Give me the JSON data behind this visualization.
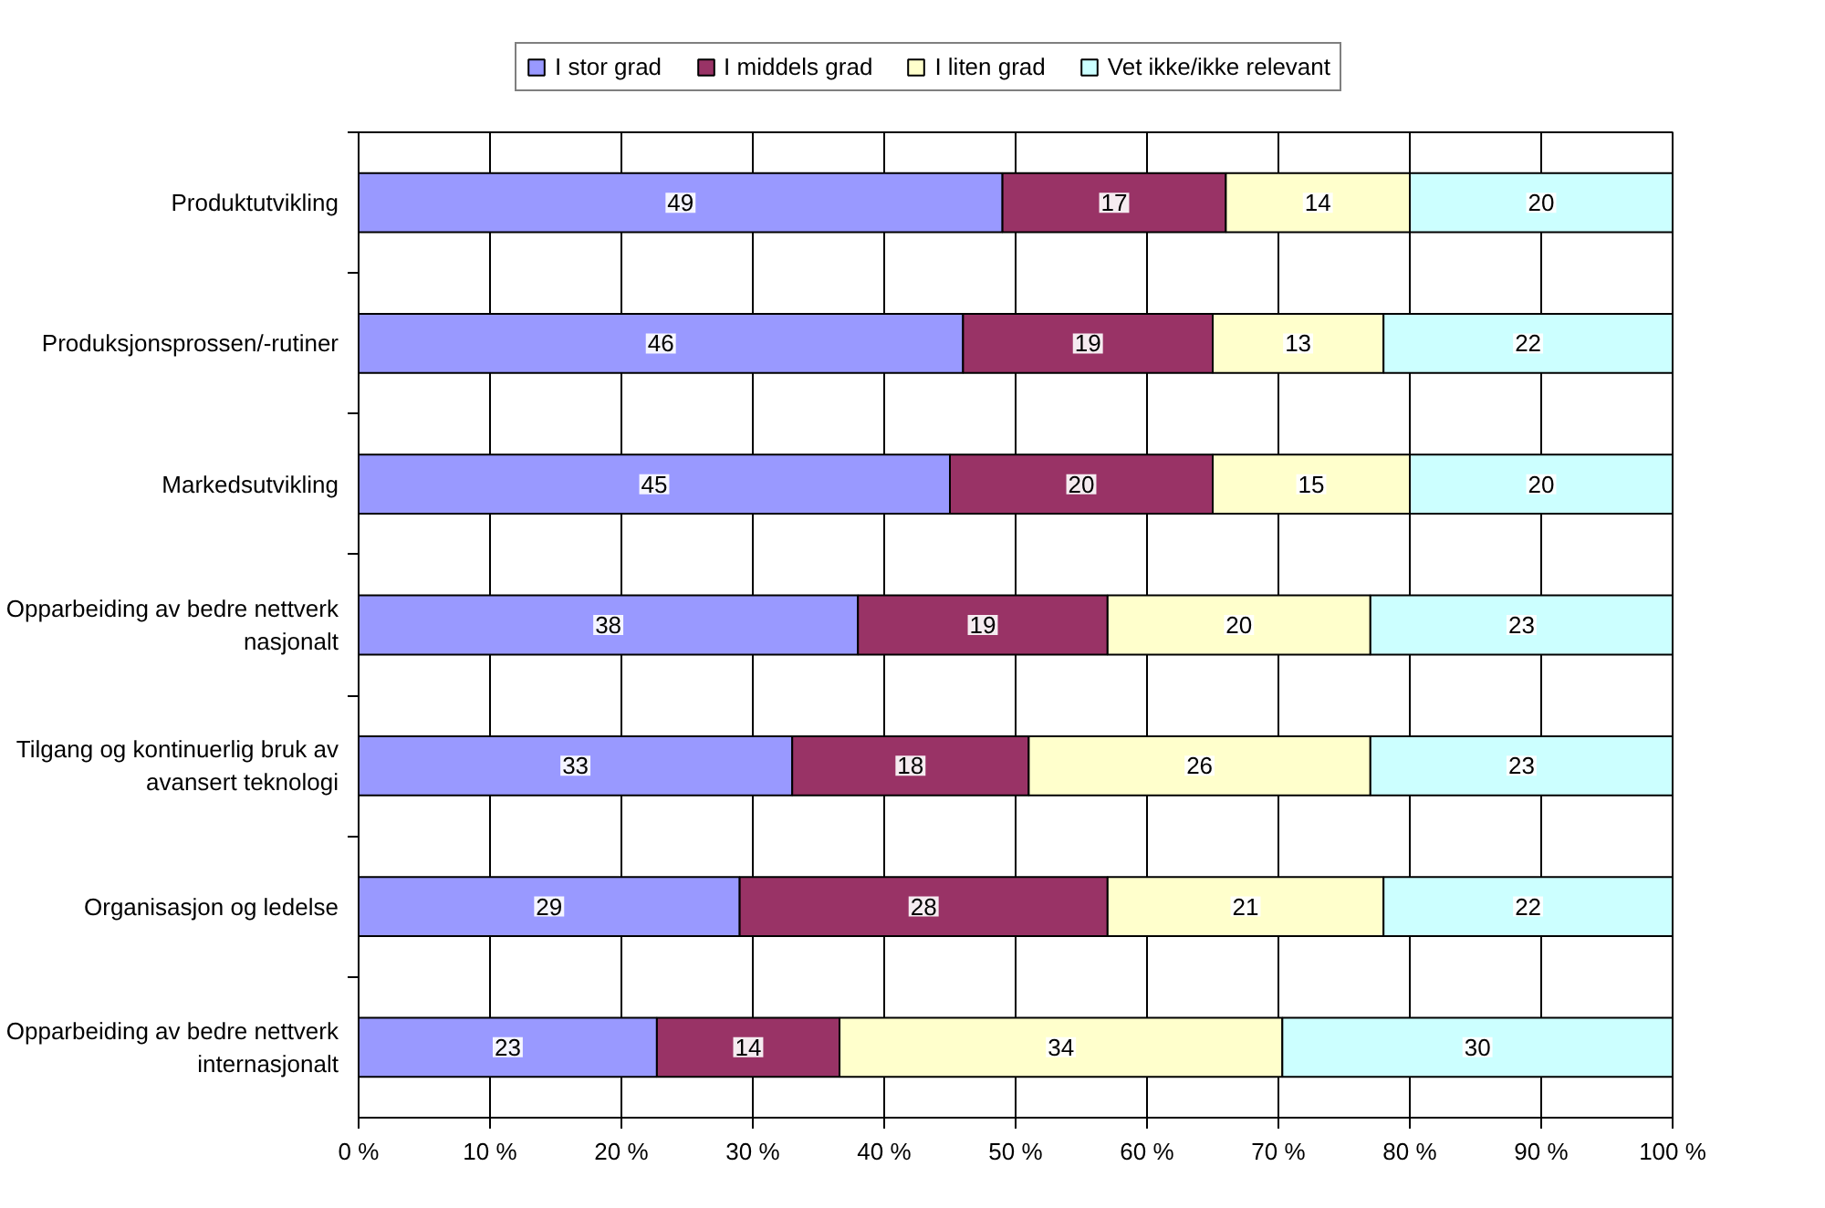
{
  "chart_data": {
    "type": "bar",
    "orientation": "horizontal",
    "stacked": true,
    "categories": [
      "Produktutvikling",
      "Produksjonsprossen/-rutiner",
      "Markedsutvikling",
      "Opparbeiding av bedre nettverk nasjonalt",
      "Tilgang og kontinuerlig bruk av avansert teknologi",
      "Organisasjon og ledelse",
      "Opparbeiding av bedre nettverk internasjonalt"
    ],
    "series": [
      {
        "name": "I stor grad",
        "color": "#9999ff",
        "values": [
          49,
          46,
          45,
          38,
          33,
          29,
          22.7
        ],
        "value_labels": [
          "49",
          "46",
          "45",
          "38",
          "33",
          "29",
          "23"
        ]
      },
      {
        "name": "I middels grad",
        "color": "#993366",
        "values": [
          17,
          19,
          20,
          19,
          18,
          28,
          13.9
        ],
        "value_labels": [
          "17",
          "19",
          "20",
          "19",
          "18",
          "28",
          "14"
        ]
      },
      {
        "name": "I liten grad",
        "color": "#ffffcc",
        "values": [
          14,
          13,
          15,
          20,
          26,
          21,
          33.7
        ],
        "value_labels": [
          "14",
          "13",
          "15",
          "20",
          "26",
          "21",
          "34"
        ]
      },
      {
        "name": "Vet ikke/ikke relevant",
        "color": "#ccffff",
        "values": [
          20,
          22,
          20,
          23,
          23,
          22,
          29.7
        ],
        "value_labels": [
          "20",
          "22",
          "20",
          "23",
          "23",
          "22",
          "30"
        ]
      }
    ],
    "xlim": [
      0,
      100
    ],
    "xticks": [
      {
        "value": 0,
        "label": "0 %"
      },
      {
        "value": 10,
        "label": "10 %"
      },
      {
        "value": 20,
        "label": "20 %"
      },
      {
        "value": 30,
        "label": "30 %"
      },
      {
        "value": 40,
        "label": "40 %"
      },
      {
        "value": 50,
        "label": "50 %"
      },
      {
        "value": 60,
        "label": "60 %"
      },
      {
        "value": 70,
        "label": "70 %"
      },
      {
        "value": 80,
        "label": "80 %"
      },
      {
        "value": 90,
        "label": "90 %"
      },
      {
        "value": 100,
        "label": "100 %"
      }
    ],
    "grid": "x",
    "legend": "top"
  }
}
